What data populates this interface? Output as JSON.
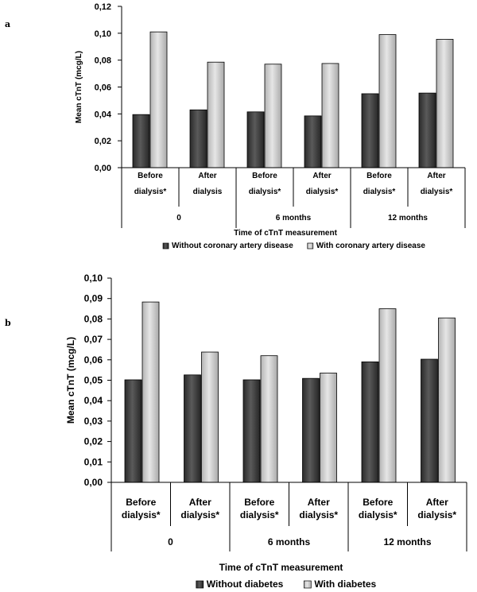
{
  "panels": {
    "a": {
      "label": "a"
    },
    "b": {
      "label": "b"
    }
  },
  "colors": {
    "dark_bar": "#3a3a3a",
    "light_bar": "#c4c4c4",
    "axis": "#000000"
  },
  "chart_data": [
    {
      "type": "bar",
      "panel": "a",
      "ylabel": "Mean cTnT (mcg/L)",
      "xlabel": "Time of cTnT measurement",
      "ylim": [
        0,
        0.12
      ],
      "yticks": [
        "0,00",
        "0,02",
        "0,04",
        "0,06",
        "0,08",
        "0,10",
        "0,12"
      ],
      "categories": [
        [
          "Before",
          "dialysis*"
        ],
        [
          "After",
          "dialysis"
        ],
        [
          "Before",
          "dialysis*"
        ],
        [
          "After",
          "dialysis*"
        ],
        [
          "Before",
          "dialysis*"
        ],
        [
          "After",
          "dialysis*"
        ]
      ],
      "groups": [
        "0",
        "6 months",
        "12 months"
      ],
      "series": [
        {
          "name": "Without coronary artery disease",
          "values": [
            0.0395,
            0.043,
            0.0415,
            0.0385,
            0.055,
            0.0555
          ]
        },
        {
          "name": "With coronary artery disease",
          "values": [
            0.101,
            0.0785,
            0.077,
            0.0775,
            0.099,
            0.0955
          ]
        }
      ],
      "legend_position": "bottom"
    },
    {
      "type": "bar",
      "panel": "b",
      "ylabel": "Mean cTnT (mcg/L)",
      "xlabel": "Time of cTnT measurement",
      "ylim": [
        0,
        0.1
      ],
      "yticks": [
        "0,00",
        "0,01",
        "0,02",
        "0,03",
        "0,04",
        "0,05",
        "0,06",
        "0,07",
        "0,08",
        "0,09",
        "0,10"
      ],
      "categories": [
        [
          "Before",
          "dialysis*"
        ],
        [
          "After",
          "dialysis*"
        ],
        [
          "Before",
          "dialysis*"
        ],
        [
          "After",
          "dialysis*"
        ],
        [
          "Before",
          "dialysis*"
        ],
        [
          "After",
          "dialysis*"
        ]
      ],
      "groups": [
        "0",
        "6 months",
        "12 months"
      ],
      "series": [
        {
          "name": "Without diabetes",
          "values": [
            0.0502,
            0.0526,
            0.0502,
            0.0509,
            0.059,
            0.0603
          ]
        },
        {
          "name": "With diabetes",
          "values": [
            0.0883,
            0.0638,
            0.062,
            0.0535,
            0.085,
            0.0805
          ]
        }
      ],
      "legend_position": "bottom"
    }
  ]
}
